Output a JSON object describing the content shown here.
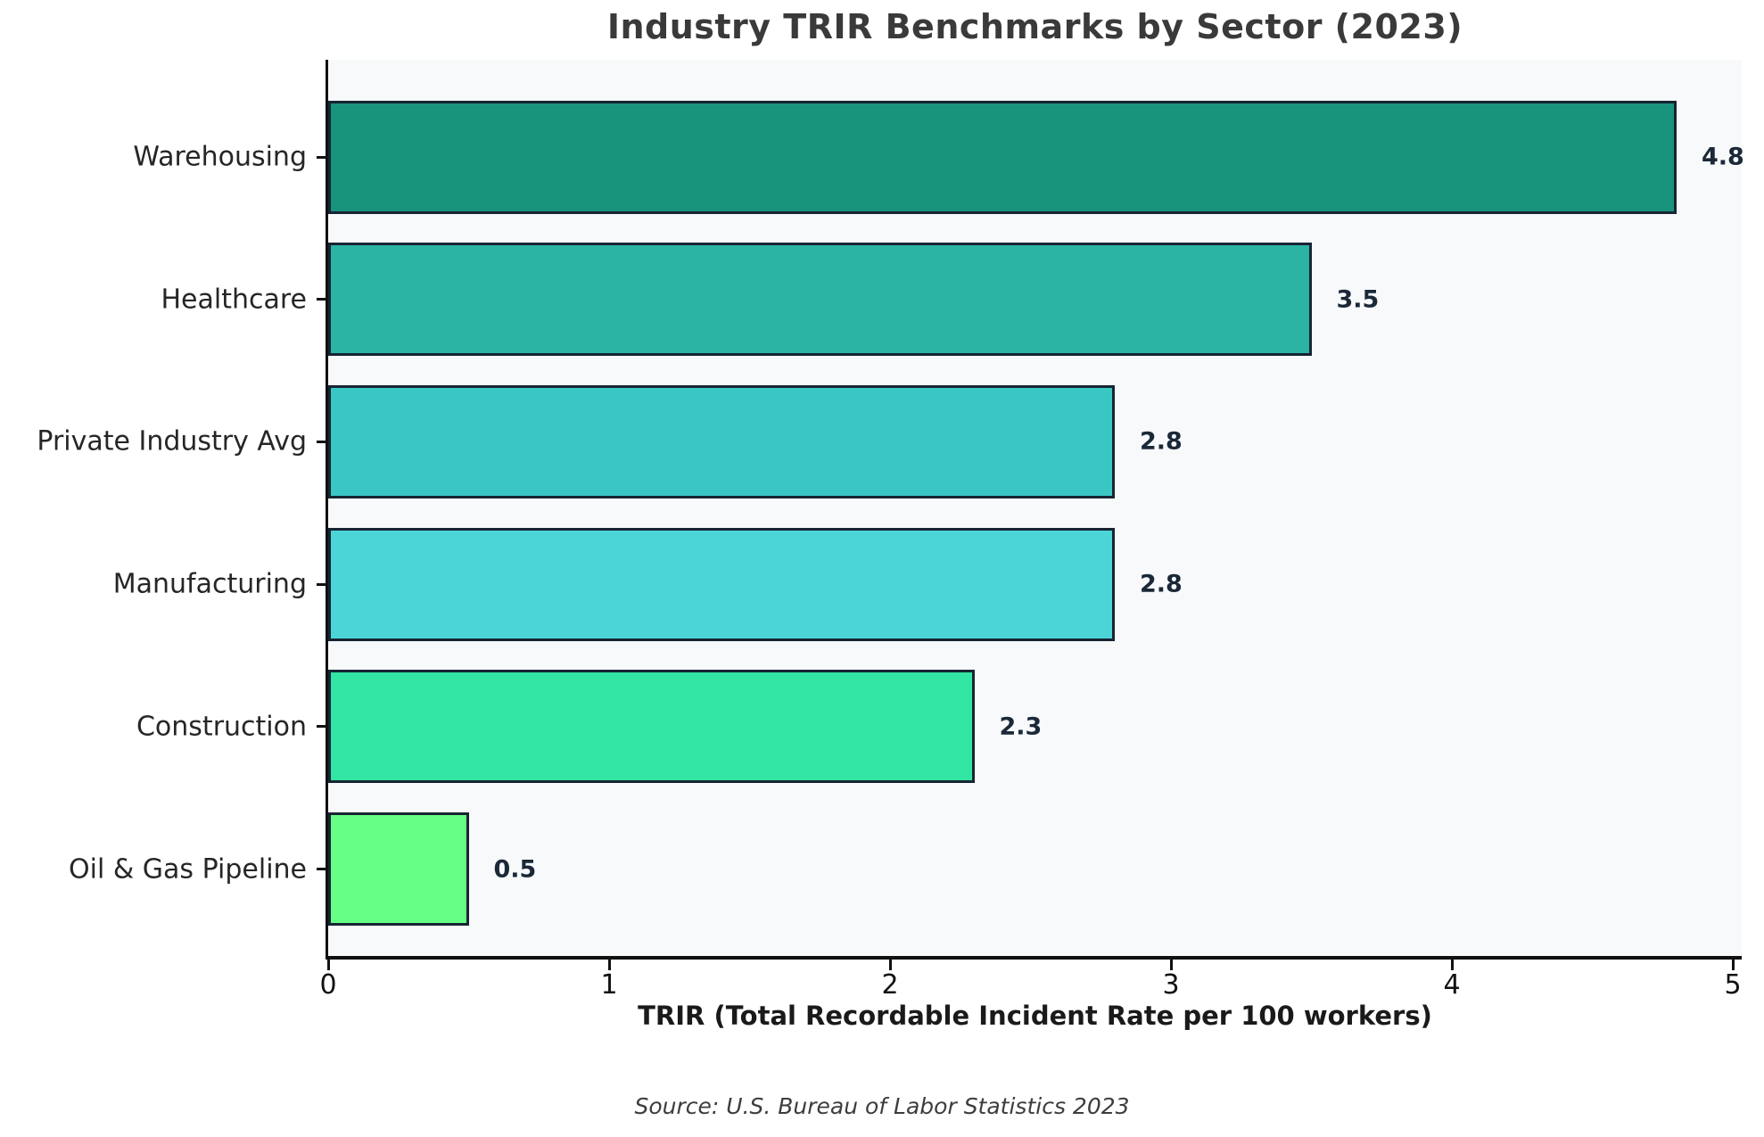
{
  "chart_data": {
    "type": "bar",
    "orientation": "horizontal",
    "title": "Industry TRIR Benchmarks by Sector (2023)",
    "xlabel": "TRIR (Total Recordable Incident Rate per 100 workers)",
    "source": "Source: U.S. Bureau of Labor Statistics 2023",
    "categories": [
      "Warehousing",
      "Healthcare",
      "Private Industry Avg",
      "Manufacturing",
      "Construction",
      "Oil & Gas Pipeline"
    ],
    "values": [
      4.8,
      3.5,
      2.8,
      2.8,
      2.3,
      0.5
    ],
    "value_labels": [
      "4.8",
      "3.5",
      "2.8",
      "2.8",
      "2.3",
      "0.5"
    ],
    "bar_colors": [
      "#17947b",
      "#2bb3a4",
      "#3ac7c4",
      "#4cd5d6",
      "#32e5a2",
      "#66ff85"
    ],
    "bar_edge_color": "#172433",
    "x_ticks": [
      "0",
      "1",
      "2",
      "3",
      "4",
      "5"
    ],
    "xlim": [
      0,
      5.03
    ],
    "grid": false,
    "legend_position": "none",
    "plot_background": "#f7f9fa",
    "figure_background": "#ffffff"
  }
}
